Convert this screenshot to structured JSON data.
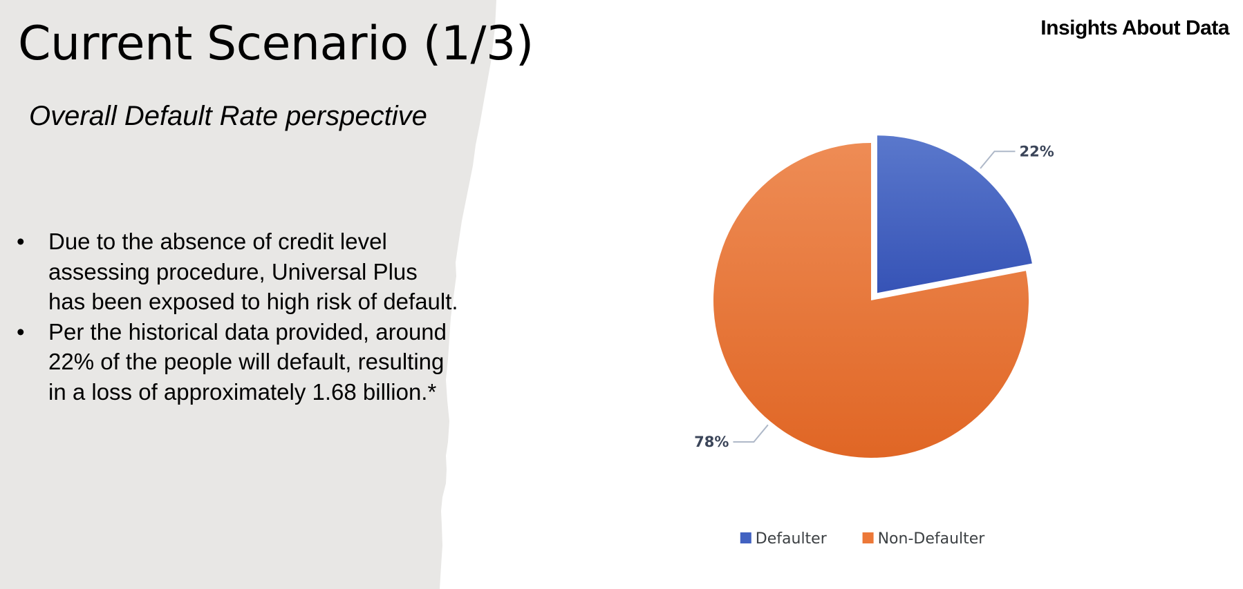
{
  "slide": {
    "title": "Current Scenario (1/3)",
    "subtitle": "Overall Default Rate perspective",
    "section_label": "Insights About Data",
    "bullets": [
      "Due to the absence of credit level assessing procedure, Universal Plus has been exposed to high risk of default.",
      "Per the historical data provided, around 22% of the people will default, resulting in a loss of approximately 1.68 billion.*"
    ],
    "panel_color": "#e8e7e5"
  },
  "chart_data": {
    "type": "pie",
    "categories": [
      "Defaulter",
      "Non-Defaulter"
    ],
    "values": [
      22,
      78
    ],
    "data_labels": [
      "22%",
      "78%"
    ],
    "colors": [
      "#4262c1",
      "#ec7838"
    ],
    "legend_position": "bottom",
    "exploded": "Defaulter"
  }
}
